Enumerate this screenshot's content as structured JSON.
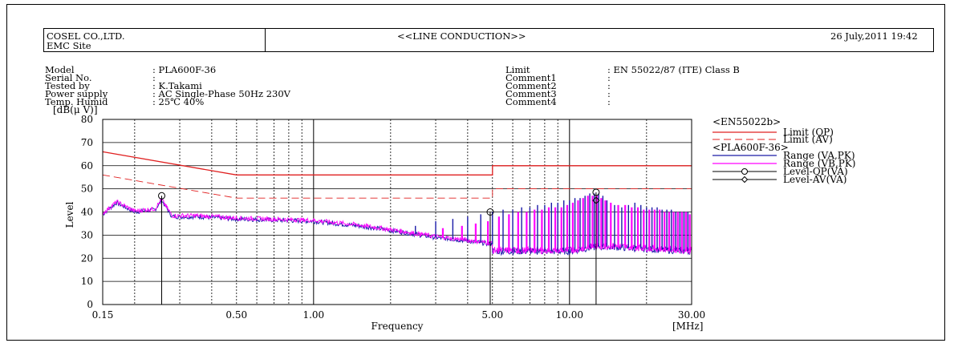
{
  "header": {
    "company": "COSEL CO.,LTD.",
    "site": "EMC Site",
    "title": "<<LINE CONDUCTION>>",
    "date": "26 July,2011 19:42"
  },
  "info_left": [
    {
      "label": "Model",
      "value": ": PLA600F-36"
    },
    {
      "label": "Serial No.",
      "value": ":"
    },
    {
      "label": "Tested by",
      "value": ": K.Takami"
    },
    {
      "label": "Power supply",
      "value": ": AC Single-Phase 50Hz 230V"
    },
    {
      "label": "Temp. Humid",
      "value": ": 25℃ 40%"
    }
  ],
  "info_right": [
    {
      "label": "Limit",
      "value": ": EN 55022/87 (ITE) Class B"
    },
    {
      "label": "Comment1",
      "value": ":"
    },
    {
      "label": "Comment2",
      "value": ":"
    },
    {
      "label": "Comment3",
      "value": ":"
    },
    {
      "label": "Comment4",
      "value": ":"
    }
  ],
  "legend": {
    "group1": "<EN55022b>",
    "group2": "<PLA600F-36>",
    "items": [
      {
        "label": "Limit (QP)",
        "color": "#e02020",
        "style": "solid"
      },
      {
        "label": "Limit (AV)",
        "color": "#e02020",
        "style": "dashed"
      },
      {
        "label": "Range (VA,PK)",
        "color": "#1a1aa8",
        "style": "solid"
      },
      {
        "label": "Range (VB,PK)",
        "color": "#ff00ff",
        "style": "solid"
      },
      {
        "label": "Level-QP(VA)",
        "color": "#000000",
        "style": "circle"
      },
      {
        "label": "Level-AV(VA)",
        "color": "#000000",
        "style": "diamond"
      }
    ]
  },
  "chart_data": {
    "type": "line",
    "x_scale": "log",
    "xlim": [
      0.15,
      30
    ],
    "ylim": [
      0,
      80
    ],
    "xlabel": "Frequency",
    "xunit": "[MHz]",
    "yunit": "[dB(μ V)]",
    "ylabel": "Level",
    "x_ticks": [
      {
        "value": 0.15,
        "label": "0.15"
      },
      {
        "value": 0.5,
        "label": "0.50"
      },
      {
        "value": 1,
        "label": "1.00"
      },
      {
        "value": 5,
        "label": "5.00"
      },
      {
        "value": 10,
        "label": "10.00"
      },
      {
        "value": 30,
        "label": "30.00"
      }
    ],
    "y_ticks": [
      0,
      10,
      20,
      30,
      40,
      50,
      60,
      70,
      80
    ],
    "limit_qp": [
      [
        0.15,
        66
      ],
      [
        0.5,
        56
      ],
      [
        5,
        56
      ],
      [
        5,
        60
      ],
      [
        30,
        60
      ]
    ],
    "limit_av": [
      [
        0.15,
        56
      ],
      [
        0.5,
        46
      ],
      [
        5,
        46
      ],
      [
        5,
        50
      ],
      [
        30,
        50
      ]
    ],
    "range_va_profile": [
      [
        0.15,
        39
      ],
      [
        0.17,
        44
      ],
      [
        0.2,
        40
      ],
      [
        0.24,
        41
      ],
      [
        0.255,
        45
      ],
      [
        0.28,
        38
      ],
      [
        0.35,
        38
      ],
      [
        0.5,
        37
      ],
      [
        0.7,
        36.5
      ],
      [
        1.0,
        36
      ],
      [
        1.5,
        34
      ],
      [
        2.0,
        32
      ],
      [
        3.0,
        29
      ],
      [
        4.0,
        27.5
      ],
      [
        5.0,
        26
      ],
      [
        5.01,
        23
      ],
      [
        7,
        23
      ],
      [
        10,
        23
      ],
      [
        12,
        24.5
      ],
      [
        14,
        25
      ],
      [
        20,
        24
      ],
      [
        30,
        23
      ]
    ],
    "range_va_peaks": [
      [
        0.255,
        46
      ],
      [
        2.5,
        34
      ],
      [
        3.0,
        36
      ],
      [
        3.5,
        37
      ],
      [
        4.0,
        38
      ],
      [
        4.5,
        39
      ],
      [
        5.0,
        40
      ],
      [
        5.5,
        41
      ],
      [
        6.0,
        41
      ],
      [
        6.5,
        42
      ],
      [
        7.0,
        42
      ],
      [
        7.5,
        43
      ],
      [
        8.0,
        43
      ],
      [
        8.5,
        44
      ],
      [
        9.0,
        44
      ],
      [
        9.5,
        45
      ],
      [
        10.0,
        45
      ],
      [
        10.5,
        46
      ],
      [
        11.0,
        46
      ],
      [
        11.5,
        47
      ],
      [
        12.0,
        48
      ],
      [
        12.5,
        48
      ],
      [
        13.0,
        48
      ],
      [
        13.5,
        47
      ],
      [
        14.0,
        45
      ],
      [
        15.0,
        43
      ],
      [
        16.0,
        42
      ],
      [
        17.0,
        43
      ],
      [
        18.0,
        44
      ],
      [
        19.0,
        43
      ],
      [
        20.0,
        42
      ],
      [
        21.0,
        42
      ],
      [
        22.0,
        42
      ],
      [
        23.0,
        41
      ],
      [
        24.0,
        41
      ],
      [
        25.0,
        41
      ],
      [
        26.0,
        40
      ],
      [
        27.0,
        40
      ],
      [
        28.0,
        40
      ],
      [
        29.0,
        40
      ]
    ],
    "range_vb_peaks": [
      [
        0.255,
        45
      ],
      [
        2.6,
        31
      ],
      [
        3.2,
        33
      ],
      [
        3.8,
        34
      ],
      [
        4.3,
        35
      ],
      [
        4.8,
        36
      ],
      [
        5.3,
        38
      ],
      [
        5.8,
        39
      ],
      [
        6.3,
        40
      ],
      [
        6.8,
        40
      ],
      [
        7.3,
        41
      ],
      [
        7.8,
        41
      ],
      [
        8.3,
        42
      ],
      [
        8.8,
        42
      ],
      [
        9.3,
        42
      ],
      [
        9.8,
        43
      ],
      [
        10.3,
        44
      ],
      [
        10.8,
        45
      ],
      [
        11.3,
        46
      ],
      [
        11.8,
        47
      ],
      [
        12.3,
        47
      ],
      [
        12.8,
        47
      ],
      [
        13.3,
        46
      ],
      [
        13.8,
        45
      ],
      [
        14.5,
        44
      ],
      [
        15.5,
        43
      ],
      [
        16.5,
        43
      ],
      [
        17.5,
        42
      ],
      [
        18.5,
        42
      ],
      [
        19.5,
        41
      ],
      [
        20.5,
        41
      ],
      [
        21.5,
        41
      ],
      [
        22.5,
        41
      ],
      [
        23.5,
        40
      ],
      [
        24.5,
        40
      ],
      [
        25.5,
        40
      ],
      [
        26.5,
        40
      ],
      [
        27.5,
        40
      ],
      [
        28.5,
        40
      ],
      [
        29.5,
        39
      ]
    ],
    "level_qp_va": [
      [
        0.255,
        47
      ],
      [
        4.9,
        40
      ],
      [
        12.7,
        48.5
      ]
    ],
    "level_av_va": [
      [
        12.7,
        45
      ]
    ]
  }
}
